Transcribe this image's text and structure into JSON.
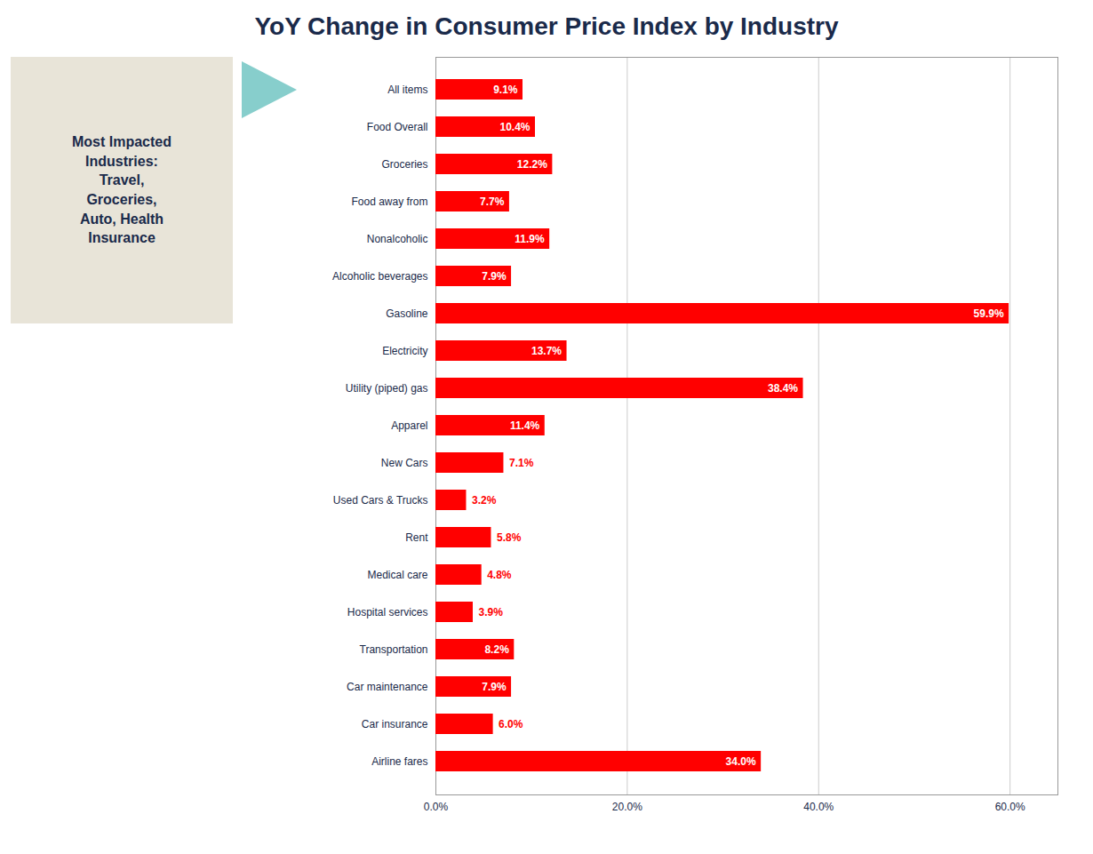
{
  "chart_data": {
    "type": "bar",
    "orientation": "horizontal",
    "title": "YoY Change in Consumer Price Index by Industry",
    "categories": [
      "Airline fares",
      "Car insurance",
      "Car maintenance",
      "Transportation",
      "Hospital services",
      "Medical care",
      "Rent",
      "Used Cars & Trucks",
      "New Cars",
      "Apparel",
      "Utility (piped) gas",
      "Electricity",
      "Gasoline",
      "Alcoholic beverages",
      "Nonalcoholic",
      "Food away from",
      "Groceries",
      "Food Overall",
      "All items"
    ],
    "values": [
      34.0,
      6.0,
      7.9,
      8.2,
      3.9,
      4.8,
      5.8,
      3.2,
      7.1,
      11.4,
      38.4,
      13.7,
      59.9,
      7.9,
      11.9,
      7.7,
      12.2,
      10.4,
      9.1
    ],
    "value_labels": [
      "34.0%",
      "6.0%",
      "7.9%",
      "8.2%",
      "3.9%",
      "4.8%",
      "5.8%",
      "3.2%",
      "7.1%",
      "11.4%",
      "38.4%",
      "13.7%",
      "59.9%",
      "7.9%",
      "11.9%",
      "7.7%",
      "12.2%",
      "10.4%",
      "9.1%"
    ],
    "data_labels": true,
    "color": "#ff0000",
    "xlim": [
      0,
      65
    ],
    "xticks": [
      {
        "value": 0,
        "label": "0.0%"
      },
      {
        "value": 20,
        "label": "20.0%"
      },
      {
        "value": 40,
        "label": "40.0%"
      },
      {
        "value": 60,
        "label": "60.0%"
      }
    ],
    "grid": true,
    "annotation": "Most Impacted\nIndustries:\nTravel,\nGroceries,\nAuto, Health\nInsurance"
  }
}
